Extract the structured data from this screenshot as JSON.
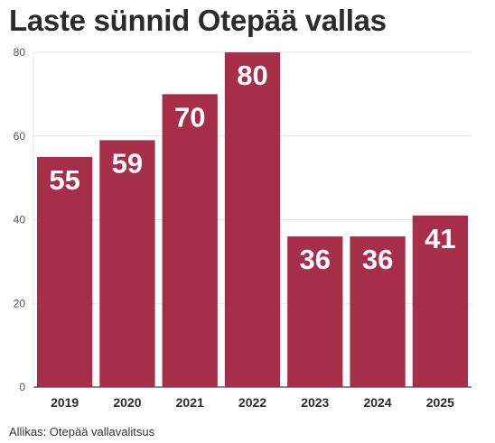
{
  "chart_data": {
    "type": "bar",
    "title": "Laste sünnid Otepää vallas",
    "categories": [
      "2019",
      "2020",
      "2021",
      "2022",
      "2023",
      "2024",
      "2025"
    ],
    "values": [
      55,
      59,
      70,
      80,
      36,
      36,
      41
    ],
    "data_labels": [
      "55",
      "59",
      "70",
      "80",
      "36",
      "36",
      "41"
    ],
    "ylim": [
      0,
      80
    ],
    "yticks": [
      0,
      20,
      40,
      60,
      80
    ],
    "ytick_labels": [
      "0",
      "20",
      "40",
      "60",
      "80"
    ],
    "xlabel": "",
    "ylabel": "",
    "grid": true,
    "bar_color": "#a62e48",
    "source": "Allikas: Otepää vallavalitsus"
  }
}
